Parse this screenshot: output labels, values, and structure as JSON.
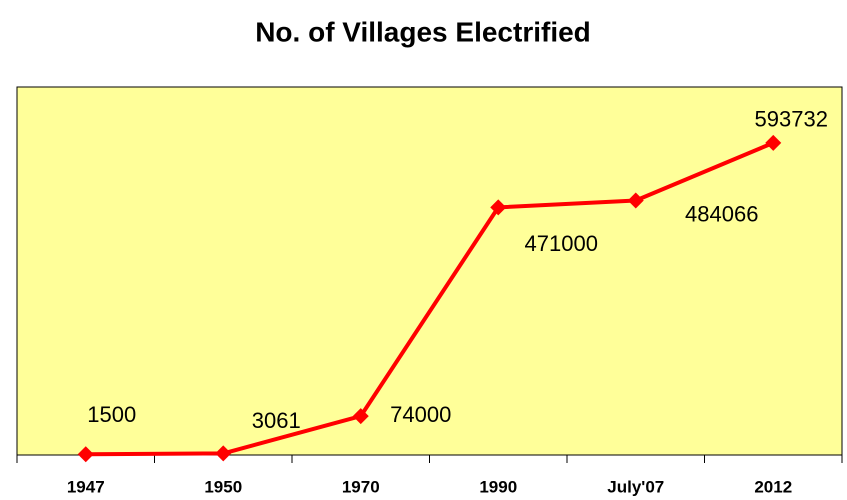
{
  "chart_data": {
    "type": "line",
    "title": "No. of Villages Electrified",
    "categories": [
      "1947",
      "1950",
      "1970",
      "1990",
      "July'07",
      "2012"
    ],
    "series": [
      {
        "name": "Villages Electrified",
        "color": "#ff0000",
        "values": [
          1500,
          3061,
          74000,
          471000,
          484066,
          593732
        ]
      }
    ],
    "ylim": [
      0,
      700000
    ],
    "plot_background": "#ffff99"
  }
}
